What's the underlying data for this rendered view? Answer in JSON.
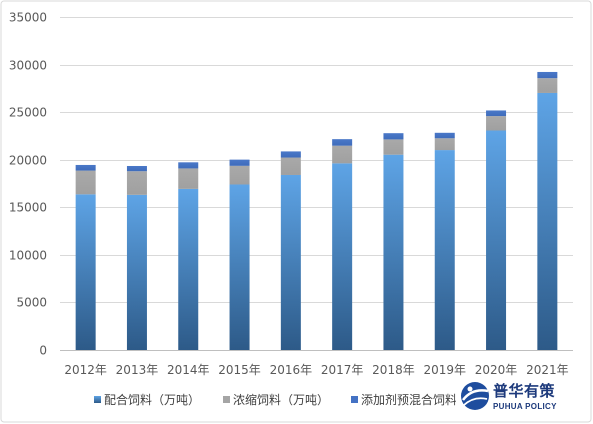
{
  "chart_data": {
    "type": "bar",
    "stacked": true,
    "categories": [
      "2012年",
      "2013年",
      "2014年",
      "2015年",
      "2016年",
      "2017年",
      "2018年",
      "2019年",
      "2020年",
      "2021年"
    ],
    "series": [
      {
        "name": "配合饲料（万吨）",
        "values": [
          16363,
          16308,
          16934,
          17396,
          18395,
          19619,
          20529,
          21013,
          23070,
          27017
        ],
        "color": "#5b9bd5"
      },
      {
        "name": "浓缩饲料（万吨）",
        "values": [
          2493,
          2482,
          2151,
          1961,
          1832,
          1854,
          1606,
          1241,
          1515,
          1554
        ],
        "color": "#a5a5a5"
      },
      {
        "name": "添加剂预混合饲料",
        "values": [
          593,
          550,
          641,
          652,
          646,
          688,
          653,
          575,
          592,
          652
        ],
        "color": "#4472c4"
      }
    ],
    "title": "",
    "xlabel": "",
    "ylabel": "",
    "ylim": [
      0,
      35000
    ],
    "yticks": [
      "0",
      "5000",
      "10000",
      "15000",
      "20000",
      "25000",
      "30000",
      "35000"
    ],
    "grid": true,
    "legend": "bottom"
  },
  "logo": {
    "name": "普华有策",
    "subtitle": "PUHUA POLICY"
  }
}
